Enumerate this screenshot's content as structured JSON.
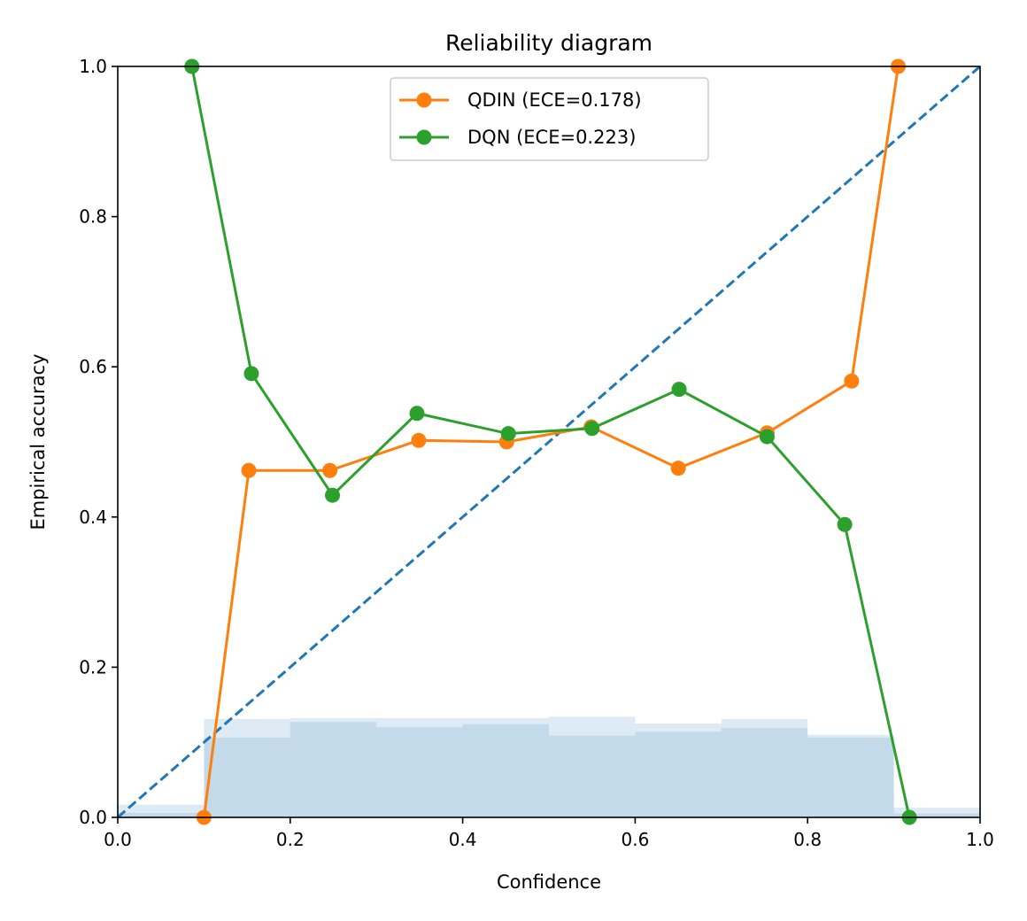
{
  "chart_data": {
    "type": "line",
    "title": "Reliability diagram",
    "xlabel": "Confidence",
    "ylabel": "Empirical accuracy",
    "xlim": [
      0,
      1
    ],
    "ylim": [
      0,
      1
    ],
    "xticks": [
      "0.0",
      "0.2",
      "0.4",
      "0.6",
      "0.8",
      "1.0"
    ],
    "yticks": [
      "0.0",
      "0.2",
      "0.4",
      "0.6",
      "0.8",
      "1.0"
    ],
    "grid": false,
    "legend_position": "top-center",
    "series": [
      {
        "name": "QDIN (ECE=0.178)",
        "color": "#ff7f0e",
        "x": [
          0.1,
          0.152,
          0.246,
          0.349,
          0.451,
          0.549,
          0.65,
          0.753,
          0.851,
          0.905
        ],
        "y": [
          0.0,
          0.462,
          0.462,
          0.502,
          0.5,
          0.52,
          0.465,
          0.512,
          0.581,
          1.0
        ]
      },
      {
        "name": "DQN (ECE=0.223)",
        "color": "#2ca02c",
        "x": [
          0.086,
          0.155,
          0.249,
          0.347,
          0.453,
          0.55,
          0.651,
          0.753,
          0.843,
          0.918
        ],
        "y": [
          1.0,
          0.591,
          0.429,
          0.538,
          0.511,
          0.518,
          0.57,
          0.507,
          0.39,
          0.0
        ]
      }
    ],
    "diagonal": {
      "style": "dashed",
      "color": "#1f77b4",
      "from": [
        0,
        0
      ],
      "to": [
        1,
        1
      ]
    },
    "histograms": {
      "color": "#1f77b4",
      "bin_edges": [
        0,
        0.1,
        0.2,
        0.3,
        0.4,
        0.5,
        0.6,
        0.7,
        0.8,
        0.9,
        1.0
      ],
      "series": [
        [
          0.017,
          0.131,
          0.132,
          0.132,
          0.132,
          0.134,
          0.125,
          0.131,
          0.11,
          0.013
        ],
        [
          0.006,
          0.106,
          0.127,
          0.12,
          0.124,
          0.109,
          0.114,
          0.119,
          0.106,
          0.005
        ]
      ]
    }
  }
}
